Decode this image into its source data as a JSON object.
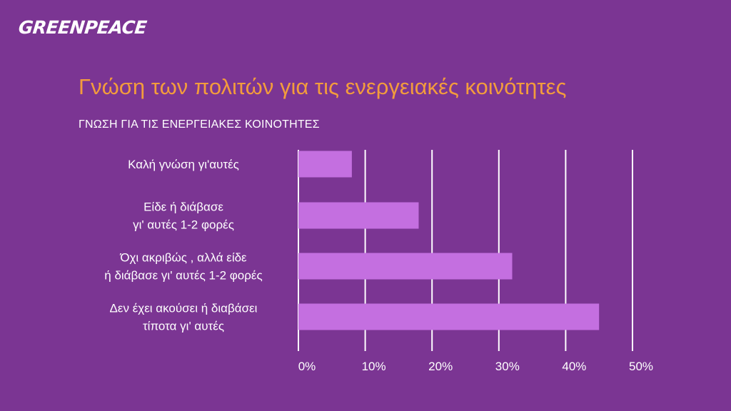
{
  "brand": {
    "logo_text": "GREENPEACE"
  },
  "header": {
    "title": "Γνώση των πολιτών για τις ενεργειακές κοινότητες"
  },
  "colors": {
    "background": "#7b3593",
    "title": "#f39c3c",
    "bar": "#c46fe0",
    "text": "#ffffff",
    "grid": "#ffffff"
  },
  "chart_data": {
    "type": "bar",
    "orientation": "horizontal",
    "title": "ΓΝΩΣΗ ΓΙΑ ΤΙΣ ΕΝΕΡΓΕΙΑΚΕΣ ΚΟΙΝΟΤΗΤΕΣ",
    "categories": [
      [
        "Καλή γνώση γι'αυτές"
      ],
      [
        "Είδε ή διάβασε",
        "γι' αυτές 1-2 φορές"
      ],
      [
        "Όχι ακριβώς , αλλά είδε",
        "ή διάβασε γι' αυτές 1-2 φορές"
      ],
      [
        "Δεν έχει ακούσει ή διαβάσει",
        "τίποτα γι' αυτές"
      ]
    ],
    "values": [
      8,
      18,
      32,
      45
    ],
    "xlim": [
      0,
      50
    ],
    "xticks": [
      0,
      10,
      20,
      30,
      40,
      50
    ],
    "tick_labels": [
      "0%",
      "10%",
      "20%",
      "30%",
      "40%",
      "50%"
    ],
    "grid": true,
    "legend": "none"
  }
}
